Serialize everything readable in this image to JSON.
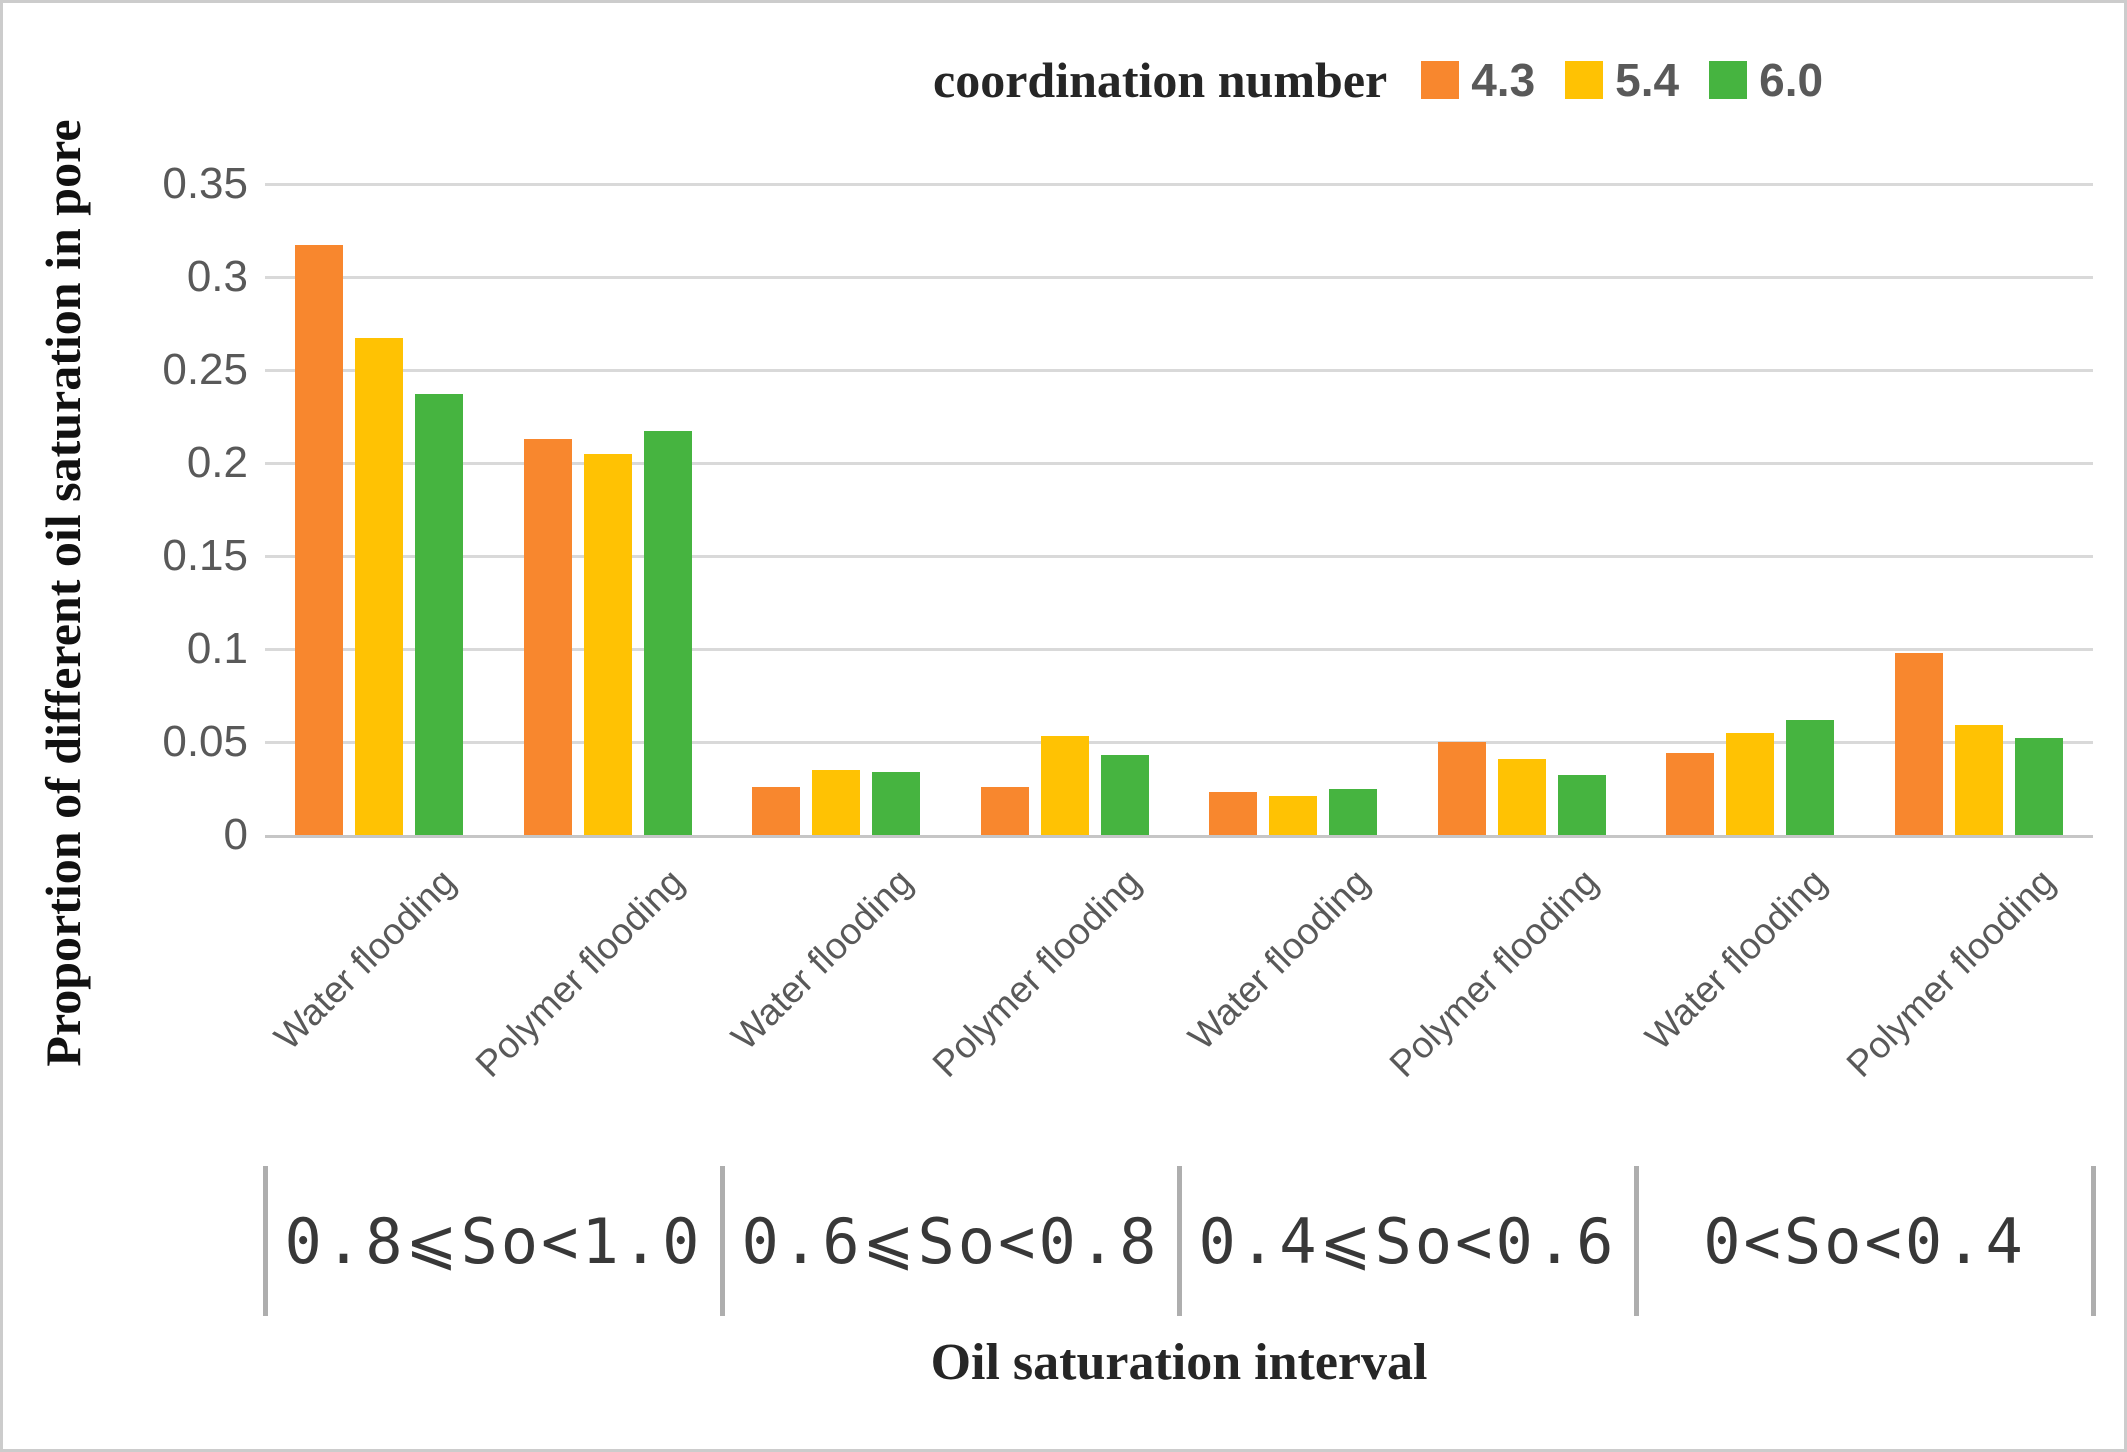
{
  "chart_data": {
    "type": "bar",
    "legend_title": "coordination number",
    "legend_position": "top-right",
    "series": [
      {
        "name": "4.3",
        "color": "#F8872E",
        "values": [
          0.317,
          0.213,
          0.026,
          0.026,
          0.023,
          0.05,
          0.044,
          0.098
        ]
      },
      {
        "name": "5.4",
        "color": "#FFC203",
        "values": [
          0.267,
          0.205,
          0.035,
          0.053,
          0.021,
          0.041,
          0.055,
          0.059
        ]
      },
      {
        "name": "6.0",
        "color": "#46B440",
        "values": [
          0.237,
          0.217,
          0.034,
          0.043,
          0.025,
          0.032,
          0.062,
          0.052
        ]
      }
    ],
    "categories": [
      "Water flooding",
      "Polymer flooding",
      "Water flooding",
      "Polymer flooding",
      "Water flooding",
      "Polymer flooding",
      "Water flooding",
      "Polymer flooding"
    ],
    "group_labels": [
      "0.8⩽So<1.0",
      "0.6⩽So<0.8",
      "0.4⩽So<0.6",
      "0<So<0.4"
    ],
    "xlabel": "Oil saturation interval",
    "ylabel": "Proportion of different oil saturation in pore",
    "ylim": [
      0,
      0.35
    ],
    "yticks": [
      0,
      0.05,
      0.1,
      0.15,
      0.2,
      0.25,
      0.3,
      0.35
    ],
    "ytick_labels": [
      "0",
      "0.05",
      "0.1",
      "0.15",
      "0.2",
      "0.25",
      "0.3",
      "0.35"
    ],
    "grid": true,
    "colors": {
      "gridline": "#d9d9d9",
      "axis_line": "#c6c6c6",
      "tick_text": "#595959",
      "interval_text": "#383838",
      "separator": "#aeaeae",
      "border": "#cccccc"
    }
  }
}
